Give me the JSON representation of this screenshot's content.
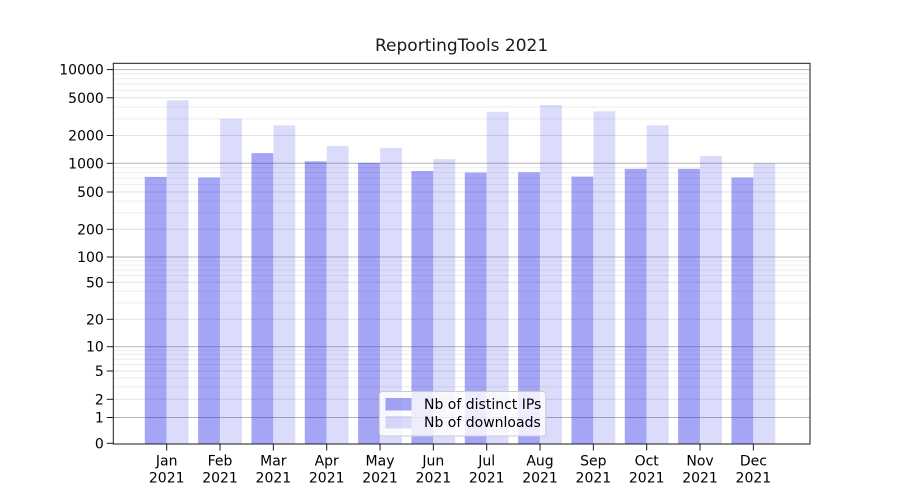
{
  "chart_data": {
    "type": "bar",
    "title": "ReportingTools 2021",
    "categories": [
      "Jan 2021",
      "Feb 2021",
      "Mar 2021",
      "Apr 2021",
      "May 2021",
      "Jun 2021",
      "Jul 2021",
      "Aug 2021",
      "Sep 2021",
      "Oct 2021",
      "Nov 2021",
      "Dec 2021"
    ],
    "series": [
      {
        "name": "Nb of distinct IPs",
        "values": [
          720,
          710,
          1290,
          1050,
          1010,
          830,
          800,
          805,
          725,
          875,
          875,
          710
        ],
        "color": "rgba(30,30,230,0.40)",
        "color_hex_on_white": "#a5a5f5"
      },
      {
        "name": "Nb of downloads",
        "values": [
          4700,
          3000,
          2560,
          1540,
          1470,
          1110,
          3550,
          4200,
          3600,
          2560,
          1200,
          1000
        ],
        "color": "rgba(30,30,230,0.16)",
        "color_hex_on_white": "#dcdcfb"
      }
    ],
    "xlabel": "",
    "ylabel": "",
    "yscale": "symlog",
    "ytick_labels": [
      "0",
      "1",
      "2",
      "5",
      "10",
      "20",
      "50",
      "100",
      "200",
      "500",
      "1000",
      "2000",
      "5000",
      "10000"
    ],
    "yticks": [
      0,
      1,
      2,
      5,
      10,
      20,
      50,
      100,
      200,
      500,
      1000,
      2000,
      5000,
      10000
    ],
    "ylim": [
      0,
      11500
    ],
    "grid": true,
    "legend_position": "lower center",
    "colors": {
      "axis": "#1a1a1a",
      "text": "#000000",
      "grid_decade": "#b4b4b4",
      "grid_labeled": "#e2e2e2",
      "grid_minor": "#ededed",
      "legend_border": "#cccccc",
      "legend_bg": "rgba(255,255,255,0.8)"
    }
  }
}
